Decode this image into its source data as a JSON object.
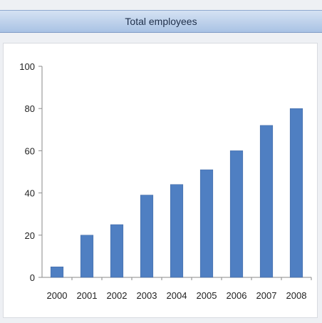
{
  "panel": {
    "title": "Total employees"
  },
  "chart_data": {
    "type": "bar",
    "title": "",
    "xlabel": "",
    "ylabel": "",
    "categories": [
      "2000",
      "2001",
      "2002",
      "2003",
      "2004",
      "2005",
      "2006",
      "2007",
      "2008"
    ],
    "values": [
      5,
      20,
      25,
      39,
      44,
      51,
      60,
      72,
      80
    ],
    "ylim": [
      0,
      100
    ],
    "yticks": [
      0,
      20,
      40,
      60,
      80,
      100
    ],
    "grid": false,
    "legend": "none",
    "bar_color": "#4f7fc2"
  }
}
